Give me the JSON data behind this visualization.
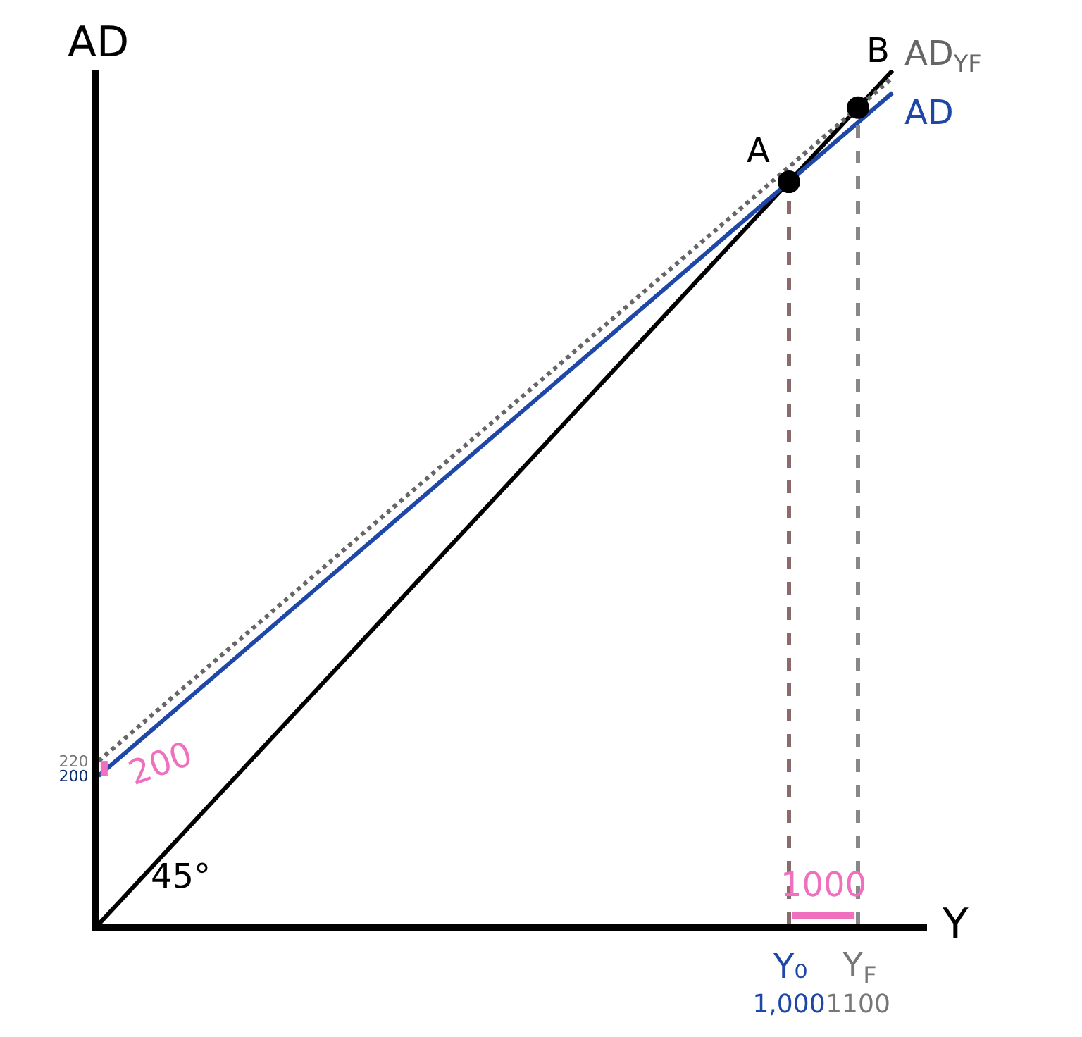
{
  "chart_data": {
    "type": "line",
    "xlabel": "Y",
    "ylabel": "AD",
    "xlim": [
      0,
      1200
    ],
    "ylim": [
      0,
      1150
    ],
    "xticks": [
      {
        "value": 1000,
        "label": "1,000"
      },
      1100
    ],
    "yticks": [
      200,
      220
    ],
    "legend": false,
    "series": [
      {
        "color": "#000000",
        "x": [
          0,
          1150
        ],
        "values": [
          0,
          1150
        ],
        "line_style": "solid"
      },
      {
        "name": "AD",
        "color": "#1f47a8",
        "x": [
          0,
          1150
        ],
        "values": [
          200,
          1120
        ],
        "line_style": "solid"
      },
      {
        "name": "AD$_{YF}$",
        "color": "#666666",
        "x": [
          0,
          1150
        ],
        "values": [
          220,
          1140
        ],
        "line_style": "dotted"
      },
      {
        "color": "#8a6a6a",
        "x": [
          1000,
          1000
        ],
        "values": [
          0,
          1000
        ],
        "line_style": "dashed"
      },
      {
        "color": "#888888",
        "x": [
          1100,
          1100
        ],
        "values": [
          0,
          1100
        ],
        "line_style": "dashed"
      },
      {
        "color": "#f070c0",
        "x": [
          1005,
          1095
        ],
        "values": [
          12,
          12
        ],
        "line_style": "solid"
      },
      {
        "color": "#f070c0",
        "x": [
          8,
          8
        ],
        "values": [
          200,
          220
        ],
        "line_style": "solid"
      },
      {
        "type": "scatter",
        "color": "#000000",
        "marker": "circle",
        "x": [
          1000,
          1100
        ],
        "values": [
          1000,
          1100
        ]
      }
    ],
    "annotations": [
      {
        "text": "A",
        "x": 1000,
        "y": 1000
      },
      {
        "text": "B",
        "x": 1100,
        "y": 1100
      },
      "45°",
      {
        "text": "200",
        "x": 8,
        "y": 220
      },
      {
        "text": "1000",
        "x": 1050,
        "y": 12
      },
      {
        "text": "Y₀",
        "x": 1000,
        "y": 0
      },
      {
        "text": "Y$_{F}$",
        "x": 1100,
        "y": 0
      }
    ]
  }
}
